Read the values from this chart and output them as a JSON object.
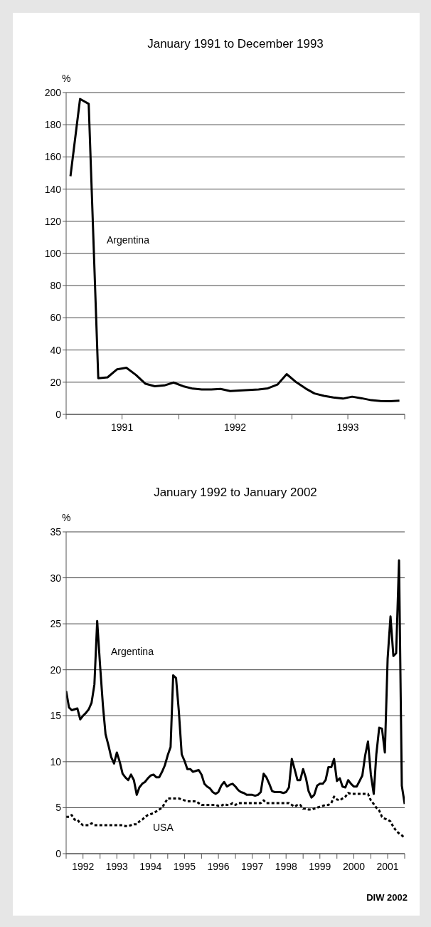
{
  "chart_data": [
    {
      "type": "line",
      "title": "January 1991 to December 1993",
      "ylabel": "%",
      "x": [
        "1991-01-15",
        "1991-02-15",
        "1991-03-15",
        "1991-04-15",
        "1991-05-15",
        "1991-06-15",
        "1991-07-15",
        "1991-08-15",
        "1991-09-15",
        "1991-10-15",
        "1991-11-15",
        "1991-12-15",
        "1992-01-15",
        "1992-02-15",
        "1992-03-15",
        "1992-04-15",
        "1992-05-15",
        "1992-06-15",
        "1992-07-15",
        "1992-08-15",
        "1992-09-15",
        "1992-10-15",
        "1992-11-15",
        "1992-12-15",
        "1993-01-15",
        "1993-02-15",
        "1993-03-15",
        "1993-04-15",
        "1993-05-15",
        "1993-06-15",
        "1993-07-15",
        "1993-08-15",
        "1993-09-15",
        "1993-10-15",
        "1993-11-15",
        "1993-12-15"
      ],
      "series": [
        {
          "name": "Argentina",
          "color": "#000000",
          "line_style": "solid",
          "values": [
            148,
            196,
            193,
            22.5,
            23,
            28,
            29,
            24.5,
            19,
            17.5,
            18,
            19.8,
            17.5,
            16,
            15.5,
            15.5,
            15.8,
            14.5,
            14.8,
            15.2,
            15.5,
            16.2,
            18.5,
            25,
            20,
            16,
            13,
            11.5,
            10.5,
            9.8,
            11,
            10,
            8.8,
            8.3,
            8.2,
            8.5
          ]
        }
      ],
      "xlim": [
        "1991-01",
        "1994-01"
      ],
      "xticks": [
        {
          "value": "1991-01",
          "label": null
        },
        {
          "value": "1991-07",
          "label": "1991"
        },
        {
          "value": "1992-01",
          "label": null
        },
        {
          "value": "1992-07",
          "label": "1992"
        },
        {
          "value": "1993-01",
          "label": null
        },
        {
          "value": "1993-07",
          "label": "1993"
        },
        {
          "value": "1994-01",
          "label": null
        }
      ],
      "ylim": [
        0,
        200
      ],
      "yticks": [
        0,
        20,
        40,
        60,
        80,
        100,
        120,
        140,
        160,
        180,
        200
      ],
      "grid": "y"
    },
    {
      "type": "line",
      "title": "January 1992 to January 2002",
      "ylabel": "%",
      "x": [
        "1992-01",
        "1992-02",
        "1992-03",
        "1992-04",
        "1992-05",
        "1992-06",
        "1992-07",
        "1992-08",
        "1992-09",
        "1992-10",
        "1992-11",
        "1992-12",
        "1993-01",
        "1993-02",
        "1993-03",
        "1993-04",
        "1993-05",
        "1993-06",
        "1993-07",
        "1993-08",
        "1993-09",
        "1993-10",
        "1993-11",
        "1993-12",
        "1994-01",
        "1994-02",
        "1994-03",
        "1994-04",
        "1994-05",
        "1994-06",
        "1994-07",
        "1994-08",
        "1994-09",
        "1994-10",
        "1994-11",
        "1994-12",
        "1995-01",
        "1995-02",
        "1995-03",
        "1995-04",
        "1995-05",
        "1995-06",
        "1995-07",
        "1995-08",
        "1995-09",
        "1995-10",
        "1995-11",
        "1995-12",
        "1996-01",
        "1996-02",
        "1996-03",
        "1996-04",
        "1996-05",
        "1996-06",
        "1996-07",
        "1996-08",
        "1996-09",
        "1996-10",
        "1996-11",
        "1996-12",
        "1997-01",
        "1997-02",
        "1997-03",
        "1997-04",
        "1997-05",
        "1997-06",
        "1997-07",
        "1997-08",
        "1997-09",
        "1997-10",
        "1997-11",
        "1997-12",
        "1998-01",
        "1998-02",
        "1998-03",
        "1998-04",
        "1998-05",
        "1998-06",
        "1998-07",
        "1998-08",
        "1998-09",
        "1998-10",
        "1998-11",
        "1998-12",
        "1999-01",
        "1999-02",
        "1999-03",
        "1999-04",
        "1999-05",
        "1999-06",
        "1999-07",
        "1999-08",
        "1999-09",
        "1999-10",
        "1999-11",
        "1999-12",
        "2000-01",
        "2000-02",
        "2000-03",
        "2000-04",
        "2000-05",
        "2000-06",
        "2000-07",
        "2000-08",
        "2000-09",
        "2000-10",
        "2000-11",
        "2000-12",
        "2001-01",
        "2001-02",
        "2001-03",
        "2001-04",
        "2001-05",
        "2001-06",
        "2001-07",
        "2001-08",
        "2001-09",
        "2001-10",
        "2001-11",
        "2001-12",
        "2002-01"
      ],
      "series": [
        {
          "name": "Argentina",
          "color": "#000000",
          "line_style": "solid",
          "values": [
            17.7,
            15.9,
            15.6,
            15.7,
            15.8,
            14.6,
            15.0,
            15.3,
            15.7,
            16.4,
            18.4,
            25.3,
            20.5,
            16.1,
            13.0,
            11.8,
            10.5,
            9.8,
            11.0,
            10.0,
            8.7,
            8.3,
            8.0,
            8.6,
            8.0,
            6.4,
            7.2,
            7.6,
            7.8,
            8.2,
            8.5,
            8.6,
            8.3,
            8.3,
            8.9,
            9.6,
            10.7,
            11.6,
            19.4,
            19.1,
            15.5,
            10.8,
            10.1,
            9.2,
            9.2,
            8.9,
            9.0,
            9.1,
            8.6,
            7.6,
            7.3,
            7.1,
            6.7,
            6.5,
            6.7,
            7.4,
            7.8,
            7.3,
            7.5,
            7.6,
            7.3,
            6.9,
            6.7,
            6.6,
            6.4,
            6.4,
            6.4,
            6.3,
            6.4,
            6.7,
            8.7,
            8.3,
            7.6,
            6.8,
            6.7,
            6.7,
            6.7,
            6.6,
            6.7,
            7.2,
            10.3,
            9.2,
            8.0,
            8.0,
            9.2,
            8.2,
            6.8,
            6.1,
            6.4,
            7.4,
            7.6,
            7.6,
            8.0,
            9.4,
            9.4,
            10.3,
            7.9,
            8.2,
            7.3,
            7.2,
            8.0,
            7.6,
            7.3,
            7.3,
            7.9,
            8.5,
            10.7,
            12.2,
            8.6,
            6.5,
            10.8,
            13.7,
            13.6,
            11.0,
            21.2,
            25.8,
            21.5,
            21.8,
            31.9,
            7.4,
            5.4
          ]
        },
        {
          "name": "USA",
          "color": "#000000",
          "line_style": "dotted",
          "values": [
            4.0,
            4.0,
            4.2,
            3.7,
            3.7,
            3.3,
            3.1,
            3.1,
            3.1,
            3.3,
            3.1,
            3.1,
            3.1,
            3.1,
            3.1,
            3.1,
            3.1,
            3.1,
            3.1,
            3.1,
            3.1,
            3.0,
            3.0,
            3.1,
            3.2,
            3.2,
            3.5,
            3.7,
            4.0,
            4.2,
            4.3,
            4.4,
            4.6,
            4.8,
            5.0,
            5.5,
            6.0,
            6.0,
            6.0,
            6.0,
            6.0,
            5.9,
            5.8,
            5.7,
            5.7,
            5.7,
            5.7,
            5.5,
            5.3,
            5.3,
            5.3,
            5.3,
            5.3,
            5.3,
            5.2,
            5.2,
            5.4,
            5.3,
            5.3,
            5.5,
            5.3,
            5.5,
            5.5,
            5.5,
            5.5,
            5.5,
            5.5,
            5.5,
            5.5,
            5.5,
            5.8,
            5.5,
            5.5,
            5.5,
            5.5,
            5.5,
            5.5,
            5.5,
            5.5,
            5.5,
            5.3,
            5.1,
            5.3,
            5.3,
            4.9,
            4.9,
            4.8,
            4.8,
            4.9,
            5.0,
            5.1,
            5.2,
            5.3,
            5.3,
            5.5,
            6.2,
            5.9,
            5.8,
            6.0,
            6.2,
            6.6,
            6.5,
            6.5,
            6.5,
            6.5,
            6.5,
            6.5,
            6.5,
            5.8,
            5.4,
            5.0,
            4.7,
            4.0,
            3.8,
            3.7,
            3.5,
            2.9,
            2.5,
            2.2,
            2.0,
            1.7
          ]
        }
      ],
      "xlim": [
        "1992-01",
        "2002-01"
      ],
      "xticks": [
        {
          "value": "1992-01",
          "label": null
        },
        {
          "value": "1992-07",
          "label": "1992"
        },
        {
          "value": "1993-01",
          "label": null
        },
        {
          "value": "1993-07",
          "label": "1993"
        },
        {
          "value": "1994-01",
          "label": null
        },
        {
          "value": "1994-07",
          "label": "1994"
        },
        {
          "value": "1995-01",
          "label": null
        },
        {
          "value": "1995-07",
          "label": "1995"
        },
        {
          "value": "1996-01",
          "label": null
        },
        {
          "value": "1996-07",
          "label": "1996"
        },
        {
          "value": "1997-01",
          "label": null
        },
        {
          "value": "1997-07",
          "label": "1997"
        },
        {
          "value": "1998-01",
          "label": null
        },
        {
          "value": "1998-07",
          "label": "1998"
        },
        {
          "value": "1999-01",
          "label": null
        },
        {
          "value": "1999-07",
          "label": "1999"
        },
        {
          "value": "2000-01",
          "label": null
        },
        {
          "value": "2000-07",
          "label": "2000"
        },
        {
          "value": "2001-01",
          "label": null
        },
        {
          "value": "2001-07",
          "label": "2001"
        },
        {
          "value": "2002-01",
          "label": null
        }
      ],
      "ylim": [
        0,
        35
      ],
      "yticks": [
        0,
        5,
        10,
        15,
        20,
        25,
        30,
        35
      ],
      "grid": "y",
      "annotations": [
        "DIW 2002"
      ]
    }
  ]
}
